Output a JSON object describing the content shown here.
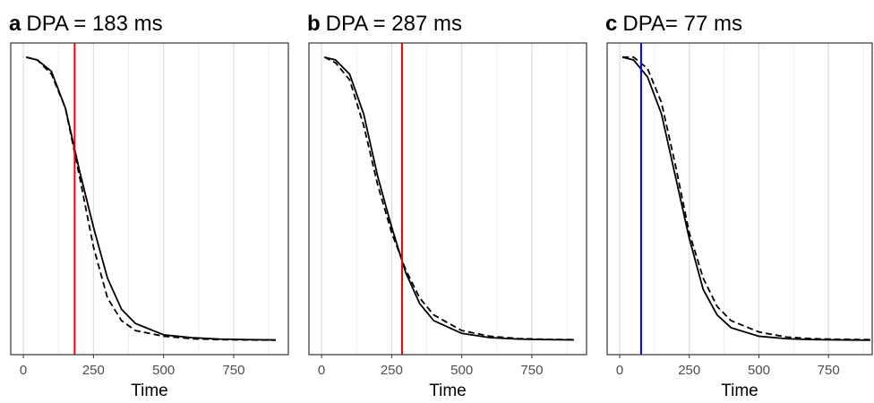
{
  "chart_data": [
    {
      "type": "line",
      "label": "a",
      "title": "DPA = 183 ms",
      "x_label": "Time",
      "vline": 183,
      "vline_color": "#ee0000",
      "xlim": [
        -45,
        945
      ],
      "ylim": [
        -0.05,
        1.05
      ],
      "xticks": [
        0,
        250,
        500,
        750
      ],
      "x_minor_ticks": [
        125,
        375,
        625,
        875
      ],
      "grid": true,
      "x": [
        10,
        50,
        100,
        150,
        200,
        250,
        300,
        350,
        400,
        500,
        600,
        700,
        800,
        900
      ],
      "series": [
        {
          "color": "#000000",
          "dashed": false,
          "values": [
            1.0,
            0.99,
            0.95,
            0.82,
            0.6,
            0.4,
            0.22,
            0.11,
            0.06,
            0.02,
            0.01,
            0.005,
            0.003,
            0.002
          ]
        },
        {
          "color": "#000000",
          "dashed": true,
          "values": [
            1.0,
            0.99,
            0.94,
            0.82,
            0.58,
            0.33,
            0.15,
            0.07,
            0.035,
            0.015,
            0.006,
            0.003,
            0.002,
            0.001
          ]
        }
      ]
    },
    {
      "type": "line",
      "label": "b",
      "title": "DPA = 287 ms",
      "x_label": "Time",
      "vline": 287,
      "vline_color": "#ee0000",
      "xlim": [
        -45,
        945
      ],
      "ylim": [
        -0.05,
        1.05
      ],
      "xticks": [
        0,
        250,
        500,
        750
      ],
      "x_minor_ticks": [
        125,
        375,
        625,
        875
      ],
      "grid": true,
      "x": [
        10,
        50,
        100,
        150,
        200,
        250,
        300,
        350,
        400,
        500,
        600,
        700,
        800,
        900
      ],
      "series": [
        {
          "color": "#000000",
          "dashed": false,
          "values": [
            1.0,
            0.99,
            0.94,
            0.8,
            0.58,
            0.4,
            0.24,
            0.13,
            0.07,
            0.025,
            0.01,
            0.005,
            0.003,
            0.002
          ]
        },
        {
          "color": "#000000",
          "dashed": true,
          "values": [
            1.0,
            0.98,
            0.92,
            0.76,
            0.55,
            0.38,
            0.25,
            0.15,
            0.09,
            0.035,
            0.015,
            0.007,
            0.004,
            0.003
          ]
        }
      ]
    },
    {
      "type": "line",
      "label": "c",
      "title": "DPA= 77 ms",
      "x_label": "Time",
      "vline": 77,
      "vline_color": "#0000ee",
      "xlim": [
        -45,
        907
      ],
      "ylim": [
        -0.05,
        1.05
      ],
      "xticks": [
        0,
        250,
        500,
        750
      ],
      "x_minor_ticks": [
        125,
        375,
        625,
        875
      ],
      "grid": true,
      "x": [
        10,
        50,
        100,
        150,
        200,
        250,
        300,
        350,
        400,
        500,
        600,
        700,
        800,
        900
      ],
      "series": [
        {
          "color": "#000000",
          "dashed": false,
          "values": [
            1.0,
            0.99,
            0.93,
            0.8,
            0.58,
            0.36,
            0.18,
            0.09,
            0.045,
            0.015,
            0.006,
            0.003,
            0.002,
            0.001
          ]
        },
        {
          "color": "#000000",
          "dashed": true,
          "values": [
            1.0,
            1.0,
            0.96,
            0.84,
            0.62,
            0.38,
            0.22,
            0.12,
            0.07,
            0.03,
            0.012,
            0.006,
            0.004,
            0.003
          ]
        }
      ]
    }
  ]
}
